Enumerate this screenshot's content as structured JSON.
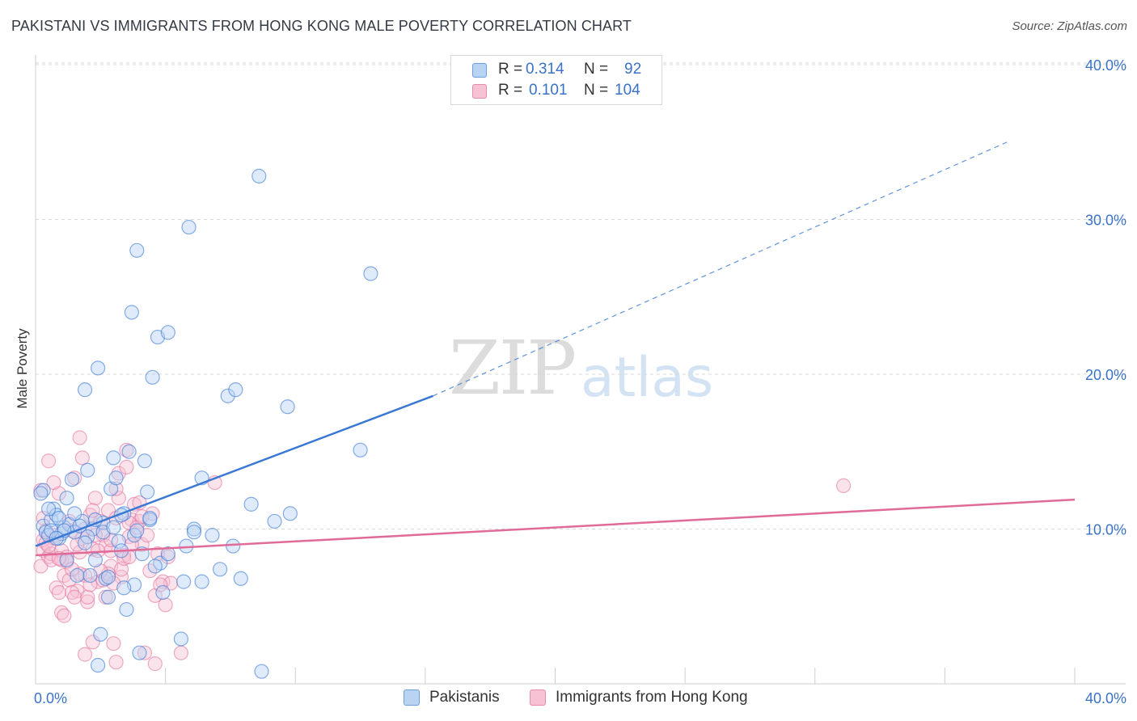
{
  "title": "PAKISTANI VS IMMIGRANTS FROM HONG KONG MALE POVERTY CORRELATION CHART",
  "source": "Source: ZipAtlas.com",
  "watermark": {
    "zip": "ZIP",
    "atlas": "atlas"
  },
  "colors": {
    "blue": "#3a78d4",
    "blue_fill": "#b9d3f3",
    "pink": "#e06b98",
    "pink_fill": "#f7c2d4",
    "grid": "#d8d8d8",
    "tick_text": "#3a72c8"
  },
  "legend": {
    "r_label": "R =",
    "n_label": "N =",
    "rows": [
      {
        "r": "0.314",
        "n": "92"
      },
      {
        "r": "0.101",
        "n": "104"
      }
    ]
  },
  "chart_data": {
    "type": "scatter",
    "title": "PAKISTANI VS IMMIGRANTS FROM HONG KONG MALE POVERTY CORRELATION CHART",
    "xlabel": "",
    "ylabel": "Male Poverty",
    "xlim": [
      0,
      40
    ],
    "ylim": [
      0,
      42
    ],
    "x_tick_labels": [
      "0.0%",
      "40.0%"
    ],
    "y_ticks": [
      10,
      20,
      30,
      40
    ],
    "y_tick_labels": [
      "10.0%",
      "20.0%",
      "30.0%",
      "40.0%"
    ],
    "grid": true,
    "series": [
      {
        "name": "Pakistanis",
        "r": 0.314,
        "n": 92,
        "trend": {
          "x0": 0,
          "y0": 8.9,
          "x1": 15.3,
          "y1": 18.6,
          "x_dash_end": 37.4,
          "y_dash_end": 35.0
        },
        "points": [
          [
            0.3,
            12.5
          ],
          [
            0.3,
            10.2
          ],
          [
            0.4,
            9.8
          ],
          [
            0.5,
            9.6
          ],
          [
            0.6,
            10.6
          ],
          [
            0.7,
            11.3
          ],
          [
            0.8,
            10.9
          ],
          [
            0.9,
            9.4
          ],
          [
            1.0,
            9.7
          ],
          [
            1.1,
            10.1
          ],
          [
            1.2,
            8.0
          ],
          [
            1.3,
            10.3
          ],
          [
            1.4,
            13.2
          ],
          [
            1.6,
            7.0
          ],
          [
            1.8,
            10.5
          ],
          [
            1.9,
            19.0
          ],
          [
            2.0,
            13.8
          ],
          [
            2.2,
            10.0
          ],
          [
            2.3,
            8.0
          ],
          [
            2.4,
            20.4
          ],
          [
            2.6,
            10.4
          ],
          [
            2.7,
            6.8
          ],
          [
            2.8,
            5.6
          ],
          [
            2.9,
            12.6
          ],
          [
            3.0,
            14.6
          ],
          [
            3.1,
            13.3
          ],
          [
            3.2,
            9.2
          ],
          [
            3.4,
            11.0
          ],
          [
            3.5,
            4.8
          ],
          [
            3.6,
            15.0
          ],
          [
            3.7,
            24.0
          ],
          [
            3.9,
            28.0
          ],
          [
            4.2,
            14.4
          ],
          [
            4.3,
            12.4
          ],
          [
            4.4,
            10.6
          ],
          [
            4.5,
            19.8
          ],
          [
            4.7,
            22.4
          ],
          [
            4.8,
            7.8
          ],
          [
            5.1,
            22.7
          ],
          [
            5.1,
            8.4
          ],
          [
            5.7,
            6.6
          ],
          [
            5.9,
            29.5
          ],
          [
            6.1,
            10.0
          ],
          [
            6.4,
            13.3
          ],
          [
            6.4,
            6.6
          ],
          [
            7.4,
            18.6
          ],
          [
            7.6,
            8.9
          ],
          [
            7.7,
            19.0
          ],
          [
            7.9,
            6.8
          ],
          [
            8.3,
            11.6
          ],
          [
            8.6,
            32.8
          ],
          [
            9.2,
            10.5
          ],
          [
            9.7,
            17.9
          ],
          [
            12.5,
            15.1
          ],
          [
            12.9,
            26.5
          ],
          [
            0.6,
            9.9
          ],
          [
            0.9,
            10.7
          ],
          [
            1.5,
            9.8
          ],
          [
            2.1,
            7.0
          ],
          [
            2.5,
            3.2
          ],
          [
            2.8,
            6.9
          ],
          [
            3.3,
            8.6
          ],
          [
            3.8,
            6.4
          ],
          [
            4.0,
            2.0
          ],
          [
            4.6,
            7.6
          ],
          [
            4.9,
            5.9
          ],
          [
            5.6,
            2.9
          ],
          [
            8.7,
            0.8
          ],
          [
            2.4,
            1.2
          ],
          [
            0.2,
            12.3
          ],
          [
            0.5,
            11.3
          ],
          [
            1.1,
            9.9
          ],
          [
            1.7,
            10.2
          ],
          [
            2.0,
            9.5
          ],
          [
            2.6,
            9.8
          ],
          [
            3.0,
            10.1
          ],
          [
            3.3,
            10.9
          ],
          [
            3.8,
            9.6
          ],
          [
            6.1,
            9.8
          ],
          [
            6.8,
            9.6
          ],
          [
            9.8,
            11.0
          ],
          [
            4.4,
            10.7
          ],
          [
            1.2,
            12.0
          ],
          [
            2.3,
            10.6
          ],
          [
            3.4,
            6.2
          ],
          [
            1.9,
            9.1
          ],
          [
            3.9,
            9.9
          ],
          [
            0.8,
            9.4
          ],
          [
            5.8,
            8.9
          ],
          [
            7.1,
            7.4
          ],
          [
            4.1,
            8.4
          ],
          [
            1.5,
            11.0
          ]
        ]
      },
      {
        "name": "Immigrants from Hong Kong",
        "r": 0.101,
        "n": 104,
        "trend": {
          "x0": 0,
          "y0": 8.3,
          "x1": 40,
          "y1": 11.9
        },
        "points": [
          [
            0.2,
            12.5
          ],
          [
            0.3,
            9.3
          ],
          [
            0.3,
            8.6
          ],
          [
            0.4,
            9.1
          ],
          [
            0.5,
            14.4
          ],
          [
            0.5,
            8.2
          ],
          [
            0.6,
            8.4
          ],
          [
            0.7,
            9.4
          ],
          [
            0.8,
            6.2
          ],
          [
            0.9,
            12.3
          ],
          [
            1.0,
            8.6
          ],
          [
            1.0,
            4.6
          ],
          [
            1.1,
            7.0
          ],
          [
            1.2,
            8.2
          ],
          [
            1.3,
            6.7
          ],
          [
            1.4,
            9.9
          ],
          [
            1.5,
            13.3
          ],
          [
            1.6,
            6.0
          ],
          [
            1.7,
            8.5
          ],
          [
            1.8,
            9.4
          ],
          [
            1.8,
            14.6
          ],
          [
            1.9,
            7.0
          ],
          [
            2.0,
            5.3
          ],
          [
            2.1,
            10.9
          ],
          [
            2.2,
            8.7
          ],
          [
            2.3,
            12.0
          ],
          [
            2.4,
            6.6
          ],
          [
            2.5,
            10.5
          ],
          [
            2.6,
            9.6
          ],
          [
            2.7,
            8.9
          ],
          [
            2.8,
            11.2
          ],
          [
            2.9,
            7.6
          ],
          [
            3.0,
            2.6
          ],
          [
            3.1,
            10.7
          ],
          [
            3.2,
            12.0
          ],
          [
            3.3,
            6.9
          ],
          [
            3.4,
            8.3
          ],
          [
            3.5,
            15.1
          ],
          [
            3.6,
            9.5
          ],
          [
            3.7,
            10.6
          ],
          [
            3.8,
            11.6
          ],
          [
            4.0,
            10.5
          ],
          [
            4.1,
            9.0
          ],
          [
            4.2,
            2.0
          ],
          [
            4.4,
            7.3
          ],
          [
            4.5,
            11.0
          ],
          [
            4.6,
            5.7
          ],
          [
            4.7,
            8.4
          ],
          [
            4.9,
            6.6
          ],
          [
            5.1,
            8.2
          ],
          [
            5.2,
            6.5
          ],
          [
            5.6,
            2.0
          ],
          [
            6.9,
            13.0
          ],
          [
            31.1,
            12.8
          ],
          [
            0.2,
            7.6
          ],
          [
            0.4,
            9.9
          ],
          [
            0.6,
            8.0
          ],
          [
            0.8,
            9.6
          ],
          [
            1.0,
            8.0
          ],
          [
            1.1,
            4.4
          ],
          [
            1.3,
            10.5
          ],
          [
            1.4,
            5.9
          ],
          [
            1.5,
            5.6
          ],
          [
            1.6,
            9.0
          ],
          [
            1.7,
            7.1
          ],
          [
            1.9,
            1.9
          ],
          [
            2.0,
            5.6
          ],
          [
            2.1,
            6.4
          ],
          [
            2.2,
            11.2
          ],
          [
            2.3,
            9.6
          ],
          [
            2.4,
            8.6
          ],
          [
            2.6,
            6.7
          ],
          [
            2.7,
            5.6
          ],
          [
            2.8,
            7.1
          ],
          [
            2.9,
            8.6
          ],
          [
            3.0,
            6.5
          ],
          [
            3.1,
            12.6
          ],
          [
            3.2,
            13.6
          ],
          [
            3.3,
            7.4
          ],
          [
            3.4,
            8.1
          ],
          [
            3.5,
            14.0
          ],
          [
            3.6,
            10.4
          ],
          [
            3.7,
            9.0
          ],
          [
            3.9,
            10.1
          ],
          [
            4.0,
            11.7
          ],
          [
            4.3,
            9.6
          ],
          [
            4.6,
            1.3
          ],
          [
            4.8,
            6.4
          ],
          [
            5.0,
            5.1
          ],
          [
            0.3,
            10.7
          ],
          [
            0.5,
            8.9
          ],
          [
            0.7,
            13.0
          ],
          [
            0.9,
            5.9
          ],
          [
            1.2,
            7.9
          ],
          [
            1.7,
            15.9
          ],
          [
            2.5,
            7.3
          ],
          [
            2.9,
            9.3
          ],
          [
            3.1,
            1.4
          ],
          [
            3.6,
            8.2
          ],
          [
            4.1,
            10.8
          ],
          [
            0.9,
            8.1
          ],
          [
            1.4,
            7.4
          ],
          [
            1.9,
            10.0
          ],
          [
            2.2,
            2.7
          ]
        ]
      }
    ]
  },
  "bottom_legend": [
    "Pakistanis",
    "Immigrants from Hong Kong"
  ]
}
